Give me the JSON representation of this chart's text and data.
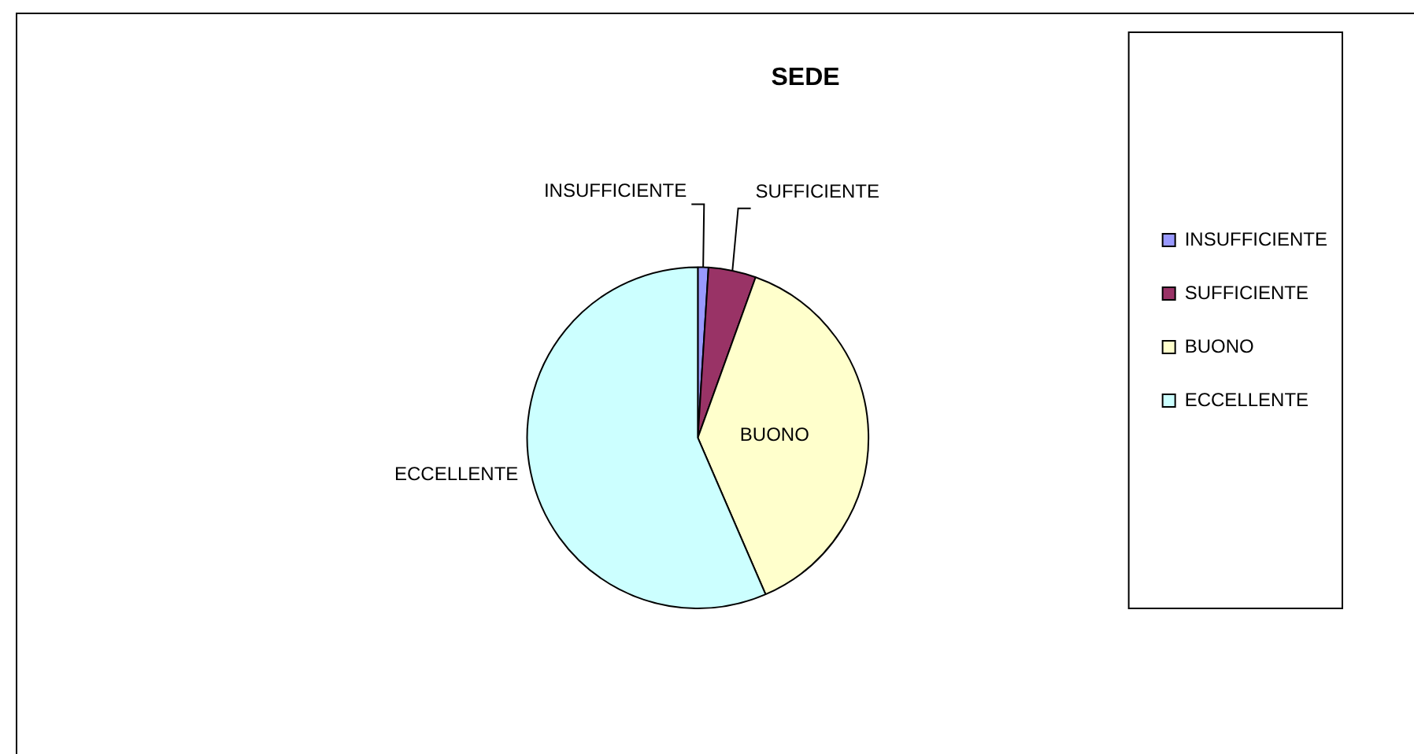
{
  "chart_data": {
    "type": "pie",
    "title": "SEDE",
    "categories": [
      "INSUFFICIENTE",
      "SUFFICIENTE",
      "BUONO",
      "ECCELLENTE"
    ],
    "values": [
      1,
      4.5,
      38,
      56.5
    ],
    "colors": [
      "#9999ff",
      "#993366",
      "#ffffcc",
      "#ccffff"
    ],
    "legend": "right"
  }
}
